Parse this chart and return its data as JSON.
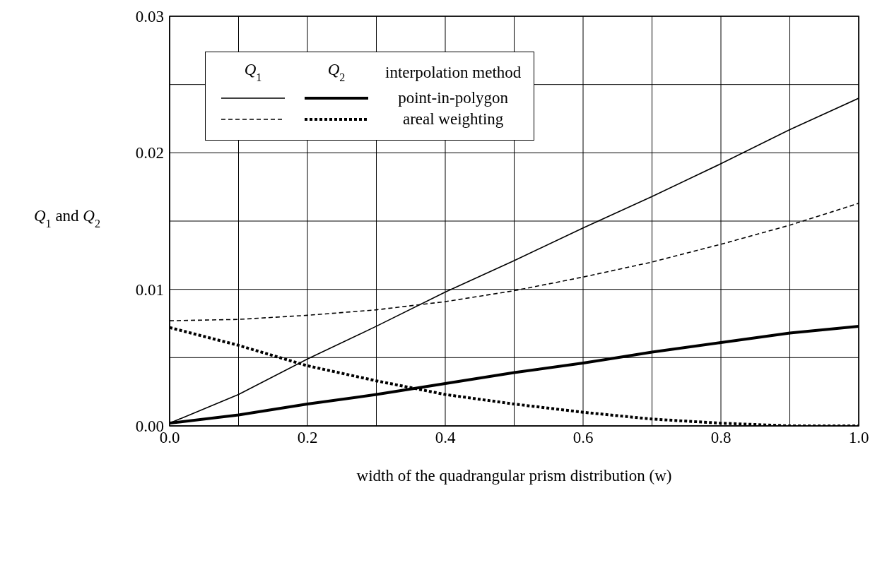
{
  "chart_data": {
    "type": "line",
    "xlabel": "width of the quadrangular prism distribution (w)",
    "ylabel": "Q$_{1}$ and Q$_{2}$",
    "legend_title": "interpolation method",
    "annotations": [
      "Q$_{1}$",
      "Q$_{2}$"
    ],
    "x": [
      0,
      0.1,
      0.2,
      0.3,
      0.4,
      0.5,
      0.6,
      0.7,
      0.8,
      0.9,
      1.0
    ],
    "series": [
      {
        "name": "point-in-polygon",
        "color": "#000000",
        "line_style": "solid",
        "values": [
          0.0002,
          0.0023,
          0.0049,
          0.0073,
          0.0098,
          0.0121,
          0.0145,
          0.0168,
          0.0192,
          0.0217,
          0.024
        ]
      },
      {
        "color": "#000000",
        "line_style": "solid",
        "values": [
          0.0002,
          0.0008,
          0.0016,
          0.0023,
          0.0031,
          0.0039,
          0.0046,
          0.0054,
          0.0061,
          0.0068,
          0.0073
        ]
      },
      {
        "name": "areal weighting",
        "color": "#000000",
        "line_style": "dashed",
        "values": [
          0.0077,
          0.0078,
          0.0081,
          0.0085,
          0.0091,
          0.0099,
          0.0109,
          0.012,
          0.0133,
          0.0147,
          0.0163
        ]
      },
      {
        "color": "#000000",
        "line_style": "dashed",
        "values": [
          0.0072,
          0.0059,
          0.0044,
          0.0033,
          0.0023,
          0.0016,
          0.001,
          0.0005,
          0.0002,
          0.0,
          0.0
        ]
      }
    ],
    "xlim": [
      0,
      1
    ],
    "ylim": [
      0,
      0.03
    ],
    "xticks": [
      {
        "value": 0,
        "label": "0.0"
      },
      {
        "value": 0.1,
        "label": null
      },
      0.2,
      {
        "value": 0.3,
        "label": null
      },
      0.4,
      {
        "value": 0.5,
        "label": null
      },
      0.6,
      {
        "value": 0.7,
        "label": null
      },
      0.8,
      {
        "value": 0.9,
        "label": null
      },
      {
        "value": 1,
        "label": "1.0"
      }
    ],
    "yticks": [
      {
        "value": 0,
        "label": "0.00"
      },
      {
        "value": 0.005,
        "label": null
      },
      0.01,
      {
        "value": 0.015,
        "label": null
      },
      0.02,
      {
        "value": 0.025,
        "label": null
      },
      0.03
    ],
    "grid": true,
    "legend": "top left"
  }
}
